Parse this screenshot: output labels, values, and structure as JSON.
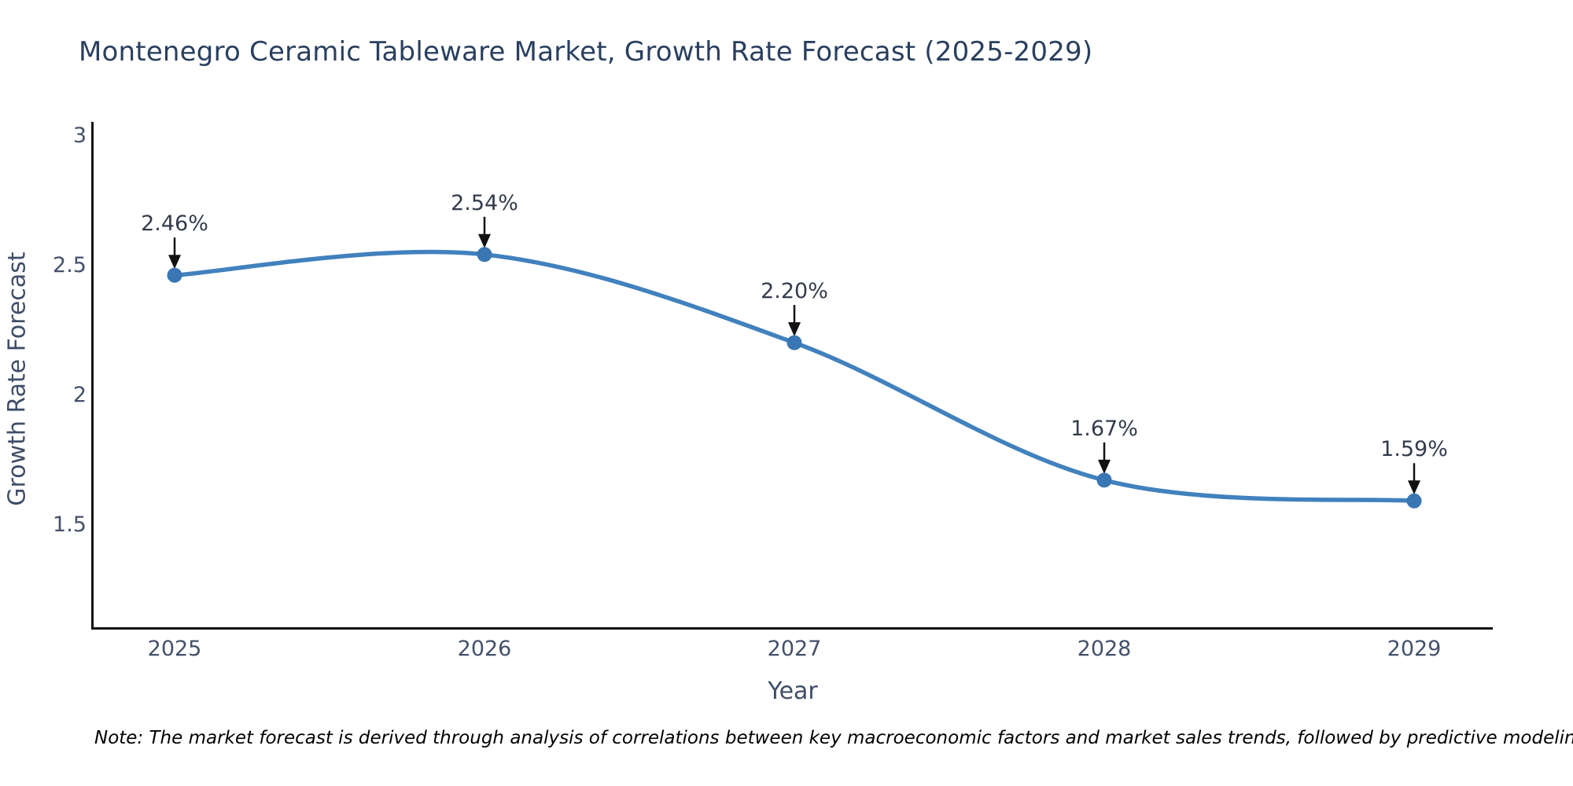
{
  "note": "Note: The market forecast is derived through analysis of correlations between key macroeconomic factors and market sales trends, followed by predictive modeling to project future sales.",
  "chart_data": {
    "type": "line",
    "title": "Montenegro Ceramic Tableware Market, Growth Rate Forecast (2025-2029)",
    "xlabel": "Year",
    "ylabel": "Growth Rate Forecast",
    "x": [
      "2025",
      "2026",
      "2027",
      "2028",
      "2029"
    ],
    "series": [
      {
        "name": "Growth Rate Forecast",
        "values": [
          2.46,
          2.54,
          2.2,
          1.67,
          1.59
        ],
        "point_labels": [
          "2.46%",
          "2.54%",
          "2.20%",
          "1.67%",
          "1.59%"
        ]
      }
    ],
    "y_ticks": [
      3,
      2.5,
      2,
      1.5
    ],
    "ylim": [
      1.1,
      3.05
    ],
    "line_shape": "spline",
    "grid": false,
    "legend_position": "none",
    "annotations_style": "value label with downward black arrow onto each marker",
    "colors": {
      "line": "#4181bd",
      "marker": "#3a76b4",
      "arrow": "#111111",
      "axis": "#111111",
      "title_text": "#2a3f5f",
      "tick_text": "#44516a",
      "note_text": "#000000"
    }
  }
}
